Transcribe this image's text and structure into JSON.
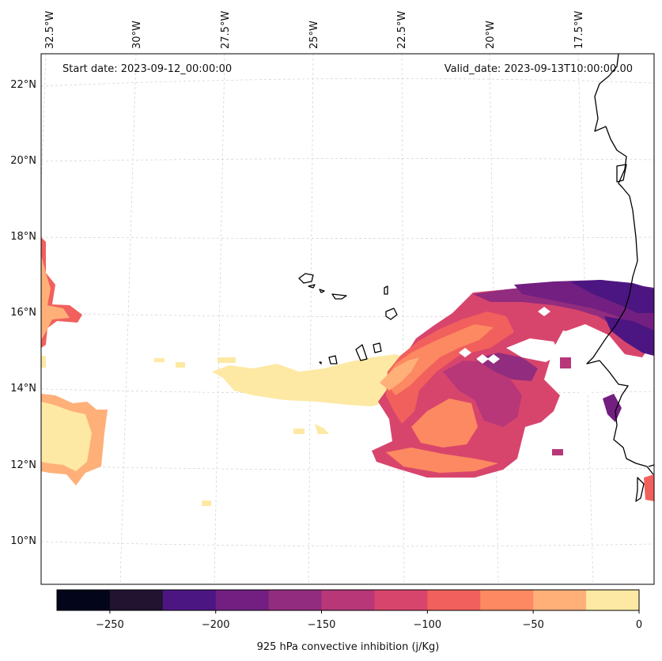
{
  "map": {
    "start_date": "Start date: 2023-09-12_00:00:00",
    "valid_date": "Valid_date: 2023-09-13T10:00:00.00",
    "lon_labels": [
      "32.5°W",
      "30°W",
      "27.5°W",
      "25°W",
      "22.5°W",
      "20°W",
      "17.5°W"
    ],
    "lat_labels": [
      "22°N",
      "20°N",
      "18°N",
      "16°N",
      "14°N",
      "12°N",
      "10°N"
    ]
  },
  "colorbar": {
    "label": "925 hPa convective inhibition (j/Kg)",
    "tick_labels": [
      "−250",
      "−200",
      "−150",
      "−100",
      "−50",
      "0"
    ],
    "bin_edges": [
      -275,
      -250,
      -225,
      -200,
      -175,
      -150,
      -125,
      -100,
      -75,
      -50,
      -25,
      0
    ],
    "colors": [
      "#03051a",
      "#221331",
      "#4c1682",
      "#721f81",
      "#922c7e",
      "#b73779",
      "#d8456c",
      "#f1605d",
      "#fc8961",
      "#feb078",
      "#fde9a3"
    ]
  },
  "chart_data": {
    "type": "heatmap",
    "title": "",
    "variable": "925 hPa convective inhibition (j/Kg)",
    "xlim_deg_W": [
      33.0,
      15.5
    ],
    "ylim_deg_N": [
      9.0,
      22.7
    ],
    "vmin": -275,
    "vmax": 0
  }
}
